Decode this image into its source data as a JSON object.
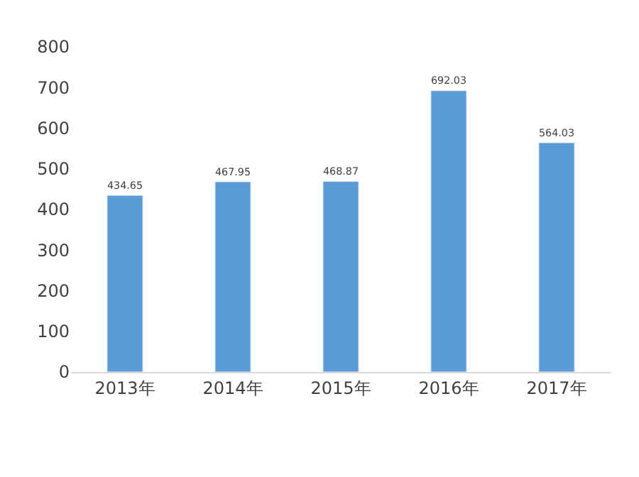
{
  "chart_data": {
    "type": "bar",
    "categories": [
      "2013年",
      "2014年",
      "2015年",
      "2016年",
      "2017年"
    ],
    "values": [
      434.65,
      467.95,
      468.87,
      692.03,
      564.03
    ],
    "color": "#5b9bd5",
    "ylim": [
      0,
      800
    ],
    "yticks": [
      0,
      100,
      200,
      300,
      400,
      500,
      600,
      700,
      800
    ],
    "data_labels": true
  }
}
